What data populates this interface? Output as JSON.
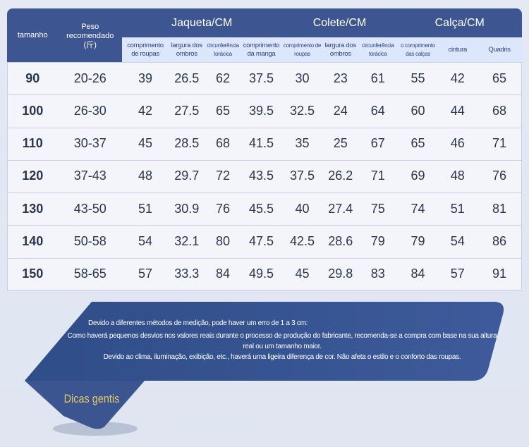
{
  "table": {
    "header": {
      "size": "tamanho",
      "weight": "Peso recomendado (斤)",
      "groups": [
        {
          "title": "Jaqueta/CM",
          "columns": [
            "comprimento de roupas",
            "largura dos ombros",
            "circunferência torácica",
            "comprimento da manga"
          ]
        },
        {
          "title": "Colete/CM",
          "columns": [
            "comprimento de roupas",
            "largura dos ombros",
            "circunferência torácica"
          ]
        },
        {
          "title": "Calça/CM",
          "columns": [
            "o comprimento das calças",
            "cintura",
            "Quadris"
          ]
        }
      ]
    },
    "rows": [
      [
        90,
        "20-26",
        39,
        26.5,
        62,
        37.5,
        30,
        23,
        61,
        55,
        42,
        65
      ],
      [
        100,
        "26-30",
        42,
        27.5,
        65,
        39.5,
        32.5,
        24,
        64,
        60,
        44,
        68
      ],
      [
        110,
        "30-37",
        45,
        28.5,
        68,
        41.5,
        35,
        25,
        67,
        65,
        46,
        71
      ],
      [
        120,
        "37-43",
        48,
        29.7,
        72,
        43.5,
        37.5,
        26.2,
        71,
        69,
        48,
        76
      ],
      [
        130,
        "43-50",
        51,
        30.9,
        76,
        45.5,
        40,
        27.4,
        75,
        74,
        51,
        81
      ],
      [
        140,
        "50-58",
        54,
        32.1,
        80,
        47.5,
        42.5,
        28.6,
        79,
        79,
        54,
        86
      ],
      [
        150,
        "58-65",
        57,
        33.3,
        84,
        49.5,
        45,
        29.8,
        83,
        84,
        57,
        91
      ]
    ]
  },
  "notes": {
    "lines": [
      "Devido a diferentes métodos de medição, pode haver um erro de 1 a 3 cm:",
      "Como haverá pequenos desvios nos valores reais durante o processo de produção do fabricante, recomenda-se a compra com base na sua altura real ou um tamanho maior.",
      "Devido ao clima, iluminação, exibição, etc., haverá uma ligeira diferença de cor. Não afeta o estilo e o conforto das roupas."
    ],
    "title": "Dicas gentis"
  }
}
